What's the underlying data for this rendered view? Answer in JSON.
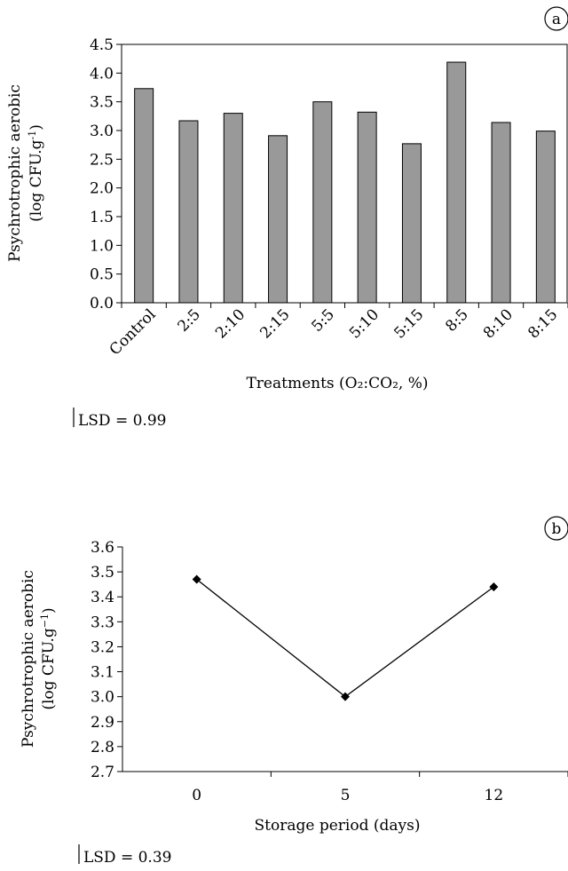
{
  "chart_data": [
    {
      "type": "bar",
      "panel_label": "a",
      "categories": [
        "Control",
        "2:5",
        "2:10",
        "2:15",
        "5:5",
        "5:10",
        "5:15",
        "8:5",
        "8:10",
        "8:15"
      ],
      "values": [
        3.73,
        3.17,
        3.3,
        2.91,
        3.5,
        3.32,
        2.77,
        4.19,
        3.14,
        2.99
      ],
      "ylim": [
        0,
        4.5
      ],
      "yticks": [
        "0.0",
        "0.5",
        "1.0",
        "1.5",
        "2.0",
        "2.5",
        "3.0",
        "3.5",
        "4.0",
        "4.5"
      ],
      "ylabel_line1": "Psychrotrophic aerobic",
      "ylabel_line2": "(log CFU.g",
      "ylabel_sup": "-1",
      "ylabel_close": ")",
      "xlabel": "Treatments (O₂:CO₂, %)",
      "lsd_text": "LSD = 0.99",
      "bar_color": "#999999"
    },
    {
      "type": "line",
      "panel_label": "b",
      "categories": [
        "0",
        "5",
        "12"
      ],
      "values": [
        3.47,
        3.0,
        3.44
      ],
      "ylim": [
        2.7,
        3.6
      ],
      "yticks": [
        "2.7",
        "2.8",
        "2.9",
        "3.0",
        "3.1",
        "3.2",
        "3.3",
        "3.4",
        "3.5",
        "3.6"
      ],
      "ylabel_line1": "Psychrotrophic aerobic",
      "ylabel_line2": "(log CFU.g",
      "ylabel_sup": "−1",
      "ylabel_close": ")",
      "xlabel": "Storage period (days)",
      "lsd_text": "LSD = 0.39"
    }
  ]
}
